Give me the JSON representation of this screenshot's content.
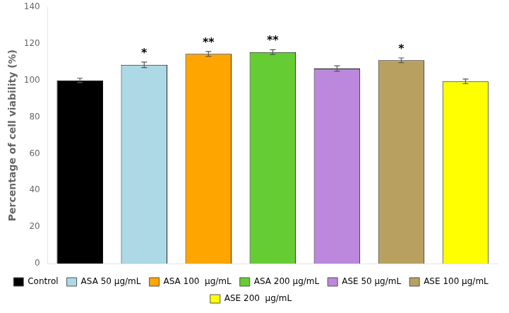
{
  "chart_data": {
    "type": "bar",
    "categories": [
      "Control",
      "ASA 50 μg/mL",
      "ASA 100  μg/mL",
      "ASA 200 μg/mL",
      "ASE 50 μg/mL",
      "ASE 100 μg/mL",
      "ASE 200  μg/mL"
    ],
    "values": [
      100.0,
      108.5,
      114.5,
      115.5,
      106.5,
      111.0,
      99.5
    ],
    "errors": [
      1.2,
      1.5,
      1.3,
      1.3,
      1.5,
      1.3,
      1.3
    ],
    "colors": [
      "#000000",
      "#ADD8E6",
      "#FFA500",
      "#66CC33",
      "#BB88DD",
      "#B8A060",
      "#FFFF00"
    ],
    "ylabel": "Percentage of cell viability (%)",
    "ylim": [
      0,
      140
    ],
    "yticks": [
      0,
      20,
      40,
      60,
      80,
      100,
      120,
      140
    ],
    "annotations": [
      null,
      "*",
      "**",
      "**",
      null,
      "*",
      null
    ],
    "grid": false,
    "legend": "bottom",
    "tick_labels": "y"
  }
}
